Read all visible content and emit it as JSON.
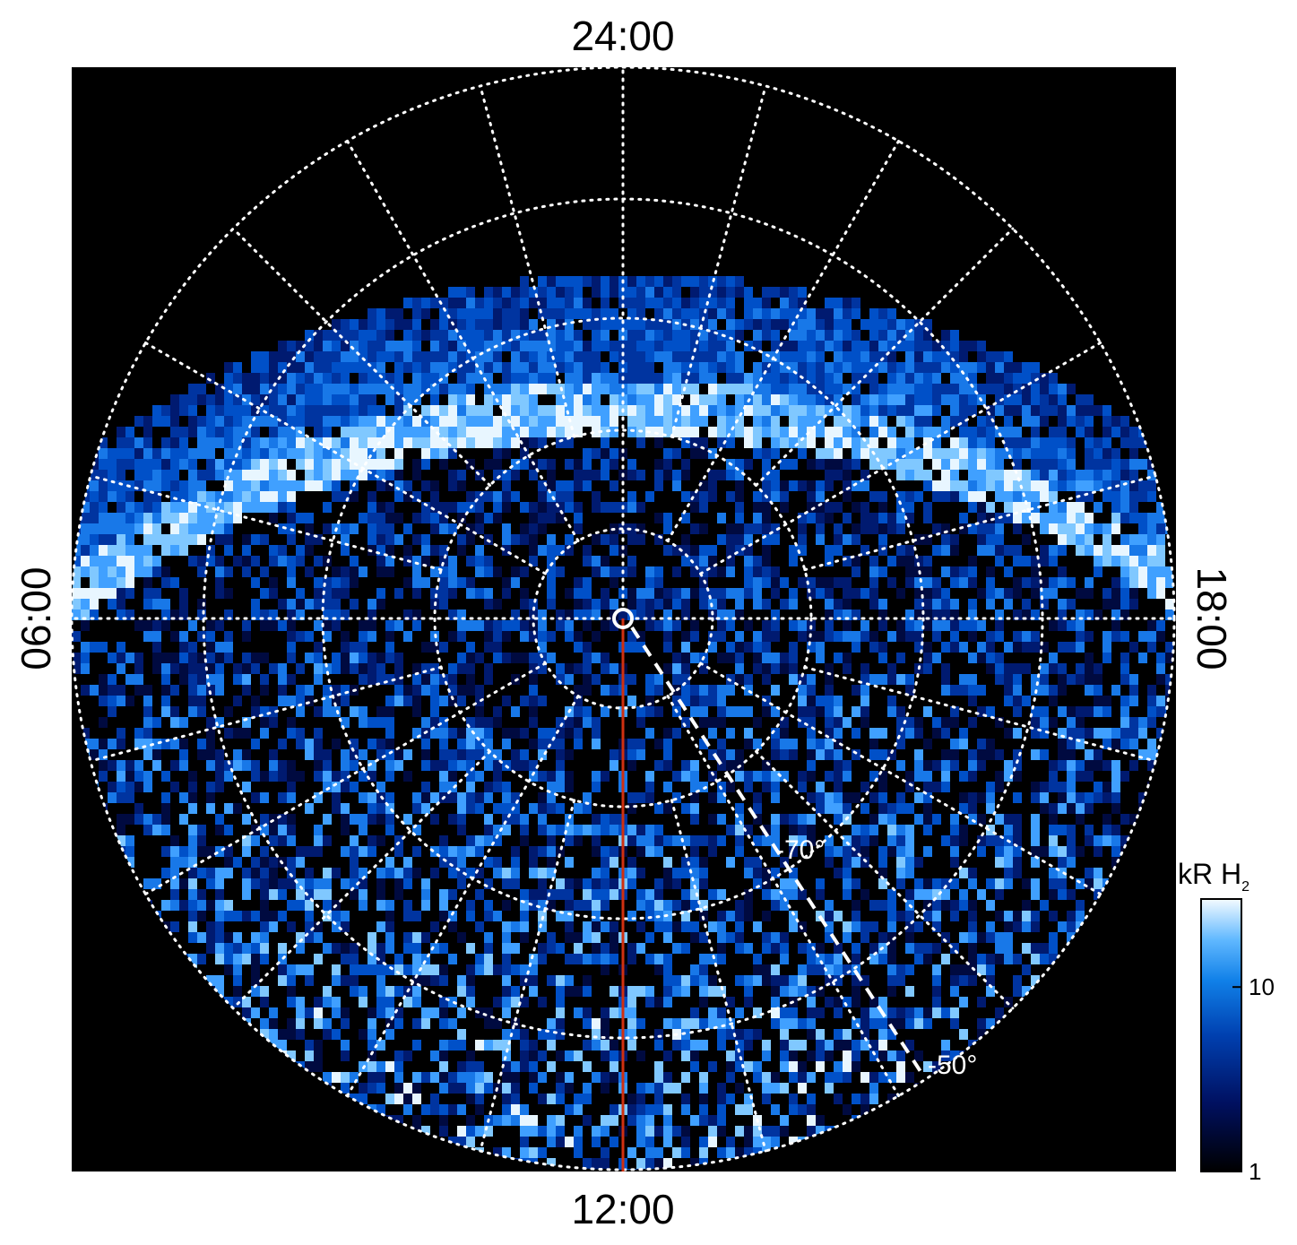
{
  "time_labels": {
    "top": "24:00",
    "left": "06:00",
    "bottom": "12:00",
    "right": "18:00"
  },
  "latitude_labels": [
    "-70°",
    "-50°"
  ],
  "colorbar": {
    "title": "kR H",
    "title_subscript": "2",
    "scale": "log",
    "range": [
      1,
      30
    ],
    "ticks": [
      1,
      10
    ]
  }
}
